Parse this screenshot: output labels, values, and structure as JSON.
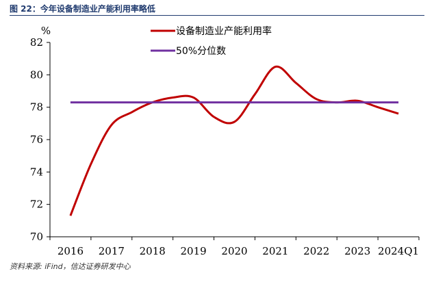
{
  "figure": {
    "title": "图 22：今年设备制造业产能利用率略低",
    "source": "资料来源: iFind，信达证券研发中心"
  },
  "chart_data": {
    "type": "line",
    "ylabel": "%",
    "ylim": [
      70,
      82
    ],
    "yticks": [
      70,
      72,
      74,
      76,
      78,
      80,
      82
    ],
    "categories": [
      "2016",
      "2017",
      "2018",
      "2019",
      "2020",
      "2021",
      "2022",
      "2023",
      "2024Q1"
    ],
    "grid": false,
    "legend_position": "top",
    "series": [
      {
        "name": "设备制造业产能利用率",
        "color": "#c00000",
        "x": [
          0,
          0.5,
          1,
          1.5,
          2,
          2.5,
          3,
          3.5,
          4,
          4.5,
          5,
          5.5,
          6,
          6.5,
          7,
          7.5,
          8
        ],
        "y": [
          71.3,
          74.5,
          76.9,
          77.7,
          78.3,
          78.6,
          78.6,
          77.4,
          77.1,
          78.8,
          80.5,
          79.5,
          78.5,
          78.3,
          78.4,
          78.0,
          77.6
        ]
      },
      {
        "name": "50%分位数",
        "color": "#7030a0",
        "x": [
          0,
          8
        ],
        "y": [
          78.3,
          78.3
        ]
      }
    ]
  }
}
